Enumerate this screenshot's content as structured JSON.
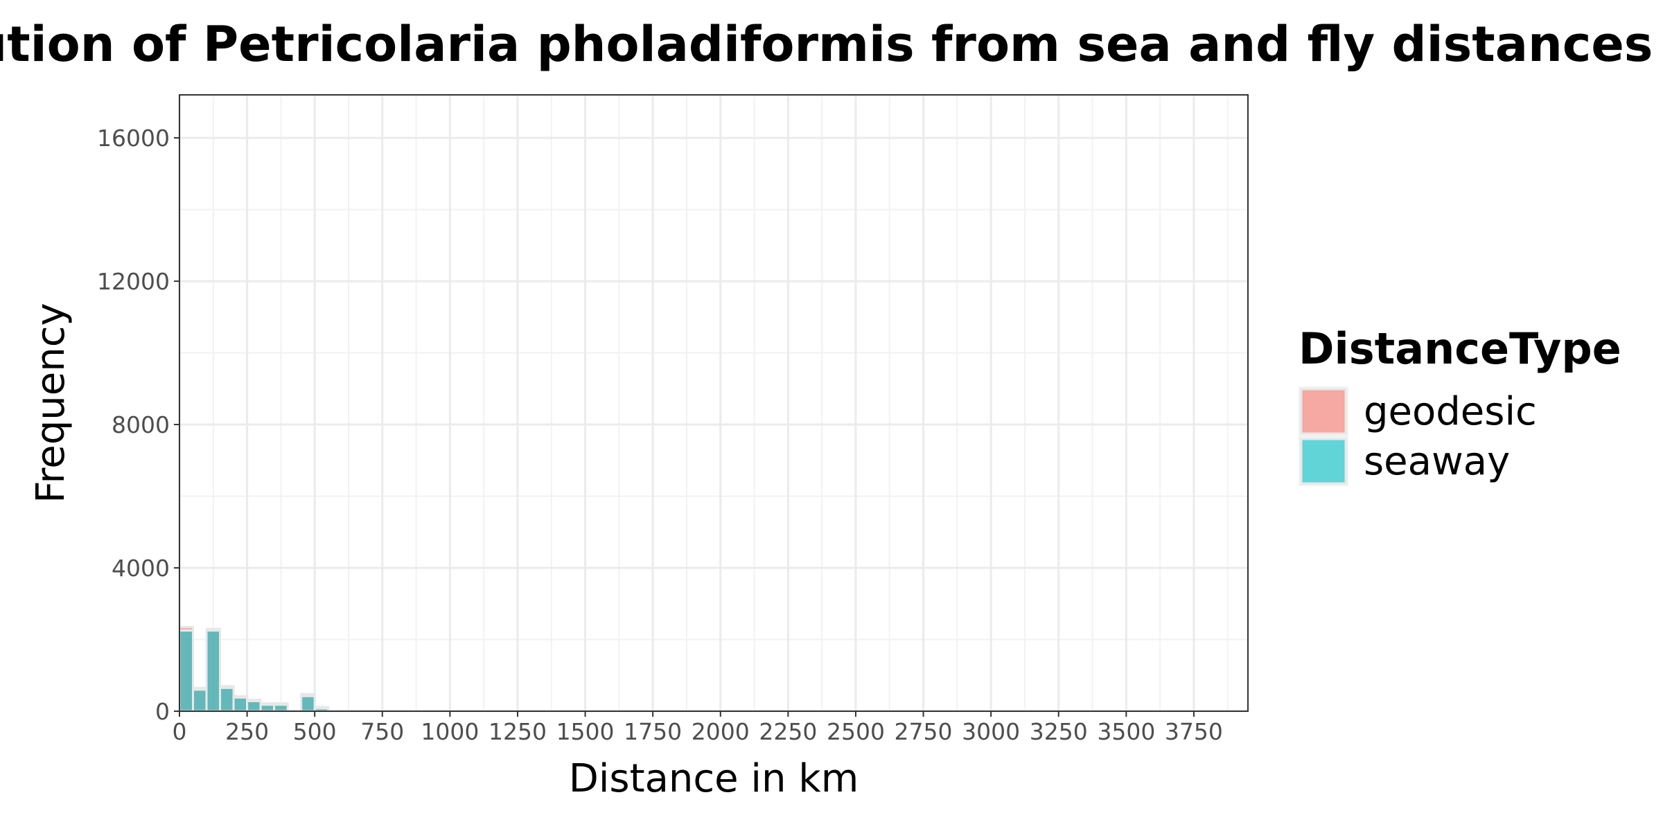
{
  "chart_data": {
    "type": "bar",
    "title": "Distribution of Petricolaria pholadiformis from sea and fly distances",
    "xlabel": "Distance in km",
    "ylabel": "Frequency",
    "xlim": [
      0,
      3950
    ],
    "ylim": [
      0,
      17200
    ],
    "x_ticks": [
      "0",
      "250",
      "500",
      "750",
      "1000",
      "1250",
      "1500",
      "1750",
      "2000",
      "2250",
      "2500",
      "2750",
      "3000",
      "3250",
      "3500",
      "3750"
    ],
    "y_ticks": [
      "0",
      "4000",
      "8000",
      "12000",
      "16000"
    ],
    "bin_width": 50,
    "grid": true,
    "legend": {
      "title": "DistanceType",
      "position": "right"
    },
    "series": [
      {
        "name": "geodesic",
        "color": "#F8766D",
        "bins": [
          {
            "x0": 0,
            "x1": 50,
            "count": 2350
          },
          {
            "x0": 50,
            "x1": 100,
            "count": 650
          },
          {
            "x0": 100,
            "x1": 150,
            "count": 2300
          },
          {
            "x0": 150,
            "x1": 200,
            "count": 700
          },
          {
            "x0": 200,
            "x1": 250,
            "count": 420
          },
          {
            "x0": 250,
            "x1": 300,
            "count": 320
          },
          {
            "x0": 300,
            "x1": 350,
            "count": 220
          },
          {
            "x0": 350,
            "x1": 400,
            "count": 220
          },
          {
            "x0": 450,
            "x1": 500,
            "count": 480
          },
          {
            "x0": 500,
            "x1": 550,
            "count": 120
          }
        ]
      },
      {
        "name": "seaway",
        "color": "#00BFC4",
        "bins": [
          {
            "x0": 0,
            "x1": 50,
            "count": 2250
          },
          {
            "x0": 50,
            "x1": 100,
            "count": 600
          },
          {
            "x0": 100,
            "x1": 150,
            "count": 2250
          },
          {
            "x0": 150,
            "x1": 200,
            "count": 650
          },
          {
            "x0": 200,
            "x1": 250,
            "count": 380
          },
          {
            "x0": 250,
            "x1": 300,
            "count": 280
          },
          {
            "x0": 300,
            "x1": 350,
            "count": 180
          },
          {
            "x0": 350,
            "x1": 400,
            "count": 180
          },
          {
            "x0": 450,
            "x1": 500,
            "count": 420
          },
          {
            "x0": 500,
            "x1": 550,
            "count": 80
          }
        ]
      }
    ]
  }
}
